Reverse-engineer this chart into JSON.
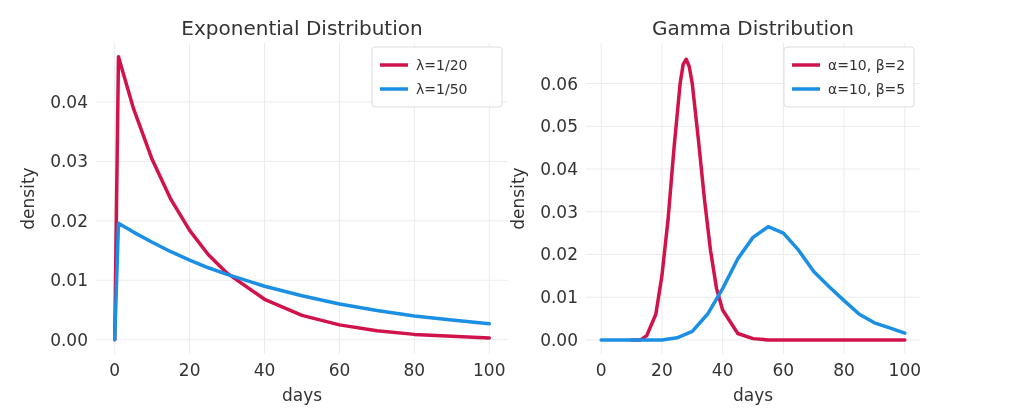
{
  "chart_data": [
    {
      "type": "line",
      "title": "Exponential Distribution",
      "xlabel": "days",
      "ylabel": "density",
      "xlim": [
        -5,
        105
      ],
      "ylim": [
        -0.0024,
        0.0499
      ],
      "xticks": [
        0,
        20,
        40,
        60,
        80,
        100
      ],
      "yticks": [
        {
          "value": 0,
          "label": "0.00"
        },
        {
          "value": 0.01,
          "label": "0.01"
        },
        {
          "value": 0.02,
          "label": "0.02"
        },
        {
          "value": 0.03,
          "label": "0.03"
        },
        {
          "value": 0.04,
          "label": "0.04"
        }
      ],
      "grid": true,
      "legend": "top right",
      "line_style": "solid",
      "series": [
        {
          "name": "λ=1/20",
          "color": "#d1134b",
          "x": [
            0,
            1,
            5,
            10,
            15,
            20,
            25,
            30,
            40,
            50,
            60,
            70,
            80,
            90,
            100
          ],
          "values": [
            0,
            0.0476,
            0.0389,
            0.0303,
            0.0236,
            0.0184,
            0.0143,
            0.0112,
            0.0068,
            0.0041,
            0.0025,
            0.0015,
            0.0009,
            0.0006,
            0.0003
          ]
        },
        {
          "name": "λ=1/50",
          "color": "#1a8fe3",
          "x": [
            0,
            1,
            5,
            10,
            15,
            20,
            25,
            30,
            40,
            50,
            60,
            70,
            80,
            90,
            100
          ],
          "values": [
            0,
            0.0196,
            0.0181,
            0.0164,
            0.0148,
            0.0134,
            0.0121,
            0.011,
            0.009,
            0.0074,
            0.006,
            0.0049,
            0.004,
            0.0033,
            0.0027
          ]
        }
      ]
    },
    {
      "type": "line",
      "title": "Gamma Distribution",
      "xlabel": "days",
      "ylabel": "density",
      "xlim": [
        -5,
        105
      ],
      "ylim": [
        -0.0033,
        0.0695
      ],
      "xticks": [
        0,
        20,
        40,
        60,
        80,
        100
      ],
      "yticks": [
        {
          "value": 0,
          "label": "0.00"
        },
        {
          "value": 0.01,
          "label": "0.01"
        },
        {
          "value": 0.02,
          "label": "0.02"
        },
        {
          "value": 0.03,
          "label": "0.03"
        },
        {
          "value": 0.04,
          "label": "0.04"
        },
        {
          "value": 0.05,
          "label": "0.05"
        },
        {
          "value": 0.06,
          "label": "0.06"
        }
      ],
      "grid": true,
      "legend": "top right",
      "line_style": "solid",
      "series": [
        {
          "name": "α=10, β=2",
          "color": "#d1134b",
          "x": [
            10,
            13,
            15,
            18,
            20,
            22,
            24,
            26,
            27,
            28,
            29,
            30,
            32,
            34,
            36,
            38,
            40,
            45,
            50,
            55,
            60,
            70,
            80,
            90,
            100
          ],
          "values": [
            0,
            0,
            0.001,
            0.006,
            0.015,
            0.028,
            0.045,
            0.06,
            0.0645,
            0.0657,
            0.064,
            0.06,
            0.047,
            0.033,
            0.021,
            0.012,
            0.007,
            0.0015,
            0.0003,
            0,
            0,
            0,
            0,
            0,
            0
          ]
        },
        {
          "name": "α=10, β=5",
          "color": "#1a8fe3",
          "x": [
            0,
            10,
            20,
            25,
            30,
            35,
            40,
            45,
            50,
            55,
            60,
            65,
            70,
            75,
            80,
            85,
            90,
            95,
            100
          ],
          "values": [
            0,
            0,
            0,
            0.0005,
            0.002,
            0.006,
            0.012,
            0.019,
            0.024,
            0.0265,
            0.025,
            0.021,
            0.016,
            0.0125,
            0.0092,
            0.006,
            0.004,
            0.0028,
            0.0016
          ]
        }
      ]
    }
  ]
}
